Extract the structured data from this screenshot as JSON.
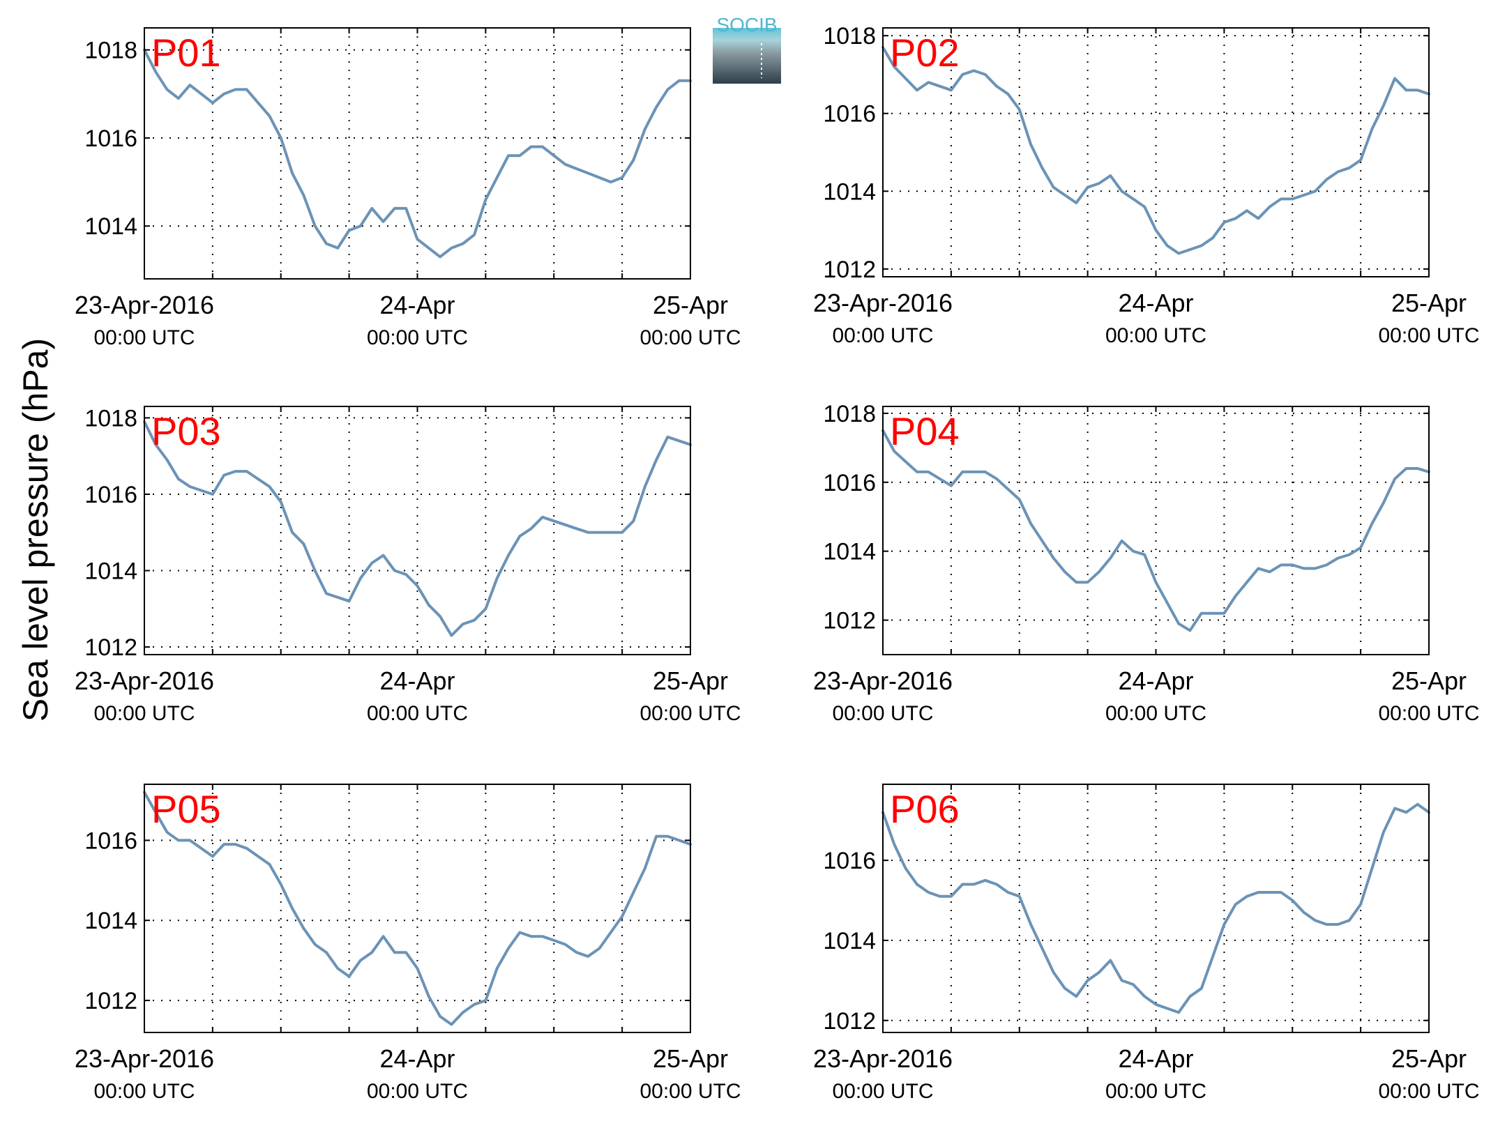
{
  "figure": {
    "ylabel": "Sea level pressure (hPa)",
    "logo_text": "SOCIB",
    "x_tick_labels": [
      {
        "date": "23-Apr-2016",
        "time": "00:00 UTC"
      },
      {
        "date": "24-Apr",
        "time": "00:00 UTC"
      },
      {
        "date": "25-Apr",
        "time": "00:00 UTC"
      }
    ],
    "colors": {
      "line": "#6b93b6",
      "panel_label": "#ff0000",
      "axis": "#000000",
      "grid": "#000000"
    }
  },
  "chart_data": [
    {
      "type": "line",
      "label": "P01",
      "grid": true,
      "xlim": [
        0,
        48
      ],
      "ylim": [
        1012.8,
        1018.5
      ],
      "yticks": [
        1014,
        1016,
        1018
      ],
      "x": [
        0,
        1,
        2,
        3,
        4,
        5,
        6,
        7,
        8,
        9,
        10,
        11,
        12,
        13,
        14,
        15,
        16,
        17,
        18,
        19,
        20,
        21,
        22,
        23,
        24,
        25,
        26,
        27,
        28,
        29,
        30,
        31,
        32,
        33,
        34,
        35,
        36,
        37,
        38,
        39,
        40,
        41,
        42,
        43,
        44,
        45,
        46,
        47,
        48
      ],
      "values": [
        1018.0,
        1017.5,
        1017.1,
        1016.9,
        1017.2,
        1017.0,
        1016.8,
        1017.0,
        1017.1,
        1017.1,
        1016.8,
        1016.5,
        1016.0,
        1015.2,
        1014.7,
        1014.0,
        1013.6,
        1013.5,
        1013.9,
        1014.0,
        1014.4,
        1014.1,
        1014.4,
        1014.4,
        1013.7,
        1013.5,
        1013.3,
        1013.5,
        1013.6,
        1013.8,
        1014.6,
        1015.1,
        1015.6,
        1015.6,
        1015.8,
        1015.8,
        1015.6,
        1015.4,
        1015.3,
        1015.2,
        1015.1,
        1015.0,
        1015.1,
        1015.5,
        1016.2,
        1016.7,
        1017.1,
        1017.3,
        1017.3
      ]
    },
    {
      "type": "line",
      "label": "P02",
      "grid": true,
      "xlim": [
        0,
        48
      ],
      "ylim": [
        1011.8,
        1018.2
      ],
      "yticks": [
        1012,
        1014,
        1016,
        1018
      ],
      "x": [
        0,
        1,
        2,
        3,
        4,
        5,
        6,
        7,
        8,
        9,
        10,
        11,
        12,
        13,
        14,
        15,
        16,
        17,
        18,
        19,
        20,
        21,
        22,
        23,
        24,
        25,
        26,
        27,
        28,
        29,
        30,
        31,
        32,
        33,
        34,
        35,
        36,
        37,
        38,
        39,
        40,
        41,
        42,
        43,
        44,
        45,
        46,
        47,
        48
      ],
      "values": [
        1017.7,
        1017.2,
        1016.9,
        1016.6,
        1016.8,
        1016.7,
        1016.6,
        1017.0,
        1017.1,
        1017.0,
        1016.7,
        1016.5,
        1016.1,
        1015.2,
        1014.6,
        1014.1,
        1013.9,
        1013.7,
        1014.1,
        1014.2,
        1014.4,
        1014.0,
        1013.8,
        1013.6,
        1013.0,
        1012.6,
        1012.4,
        1012.5,
        1012.6,
        1012.8,
        1013.2,
        1013.3,
        1013.5,
        1013.3,
        1013.6,
        1013.8,
        1013.8,
        1013.9,
        1014.0,
        1014.3,
        1014.5,
        1014.6,
        1014.8,
        1015.6,
        1016.2,
        1016.9,
        1016.6,
        1016.6,
        1016.5
      ]
    },
    {
      "type": "line",
      "label": "P03",
      "grid": true,
      "xlim": [
        0,
        48
      ],
      "ylim": [
        1011.8,
        1018.3
      ],
      "yticks": [
        1012,
        1014,
        1016,
        1018
      ],
      "x": [
        0,
        1,
        2,
        3,
        4,
        5,
        6,
        7,
        8,
        9,
        10,
        11,
        12,
        13,
        14,
        15,
        16,
        17,
        18,
        19,
        20,
        21,
        22,
        23,
        24,
        25,
        26,
        27,
        28,
        29,
        30,
        31,
        32,
        33,
        34,
        35,
        36,
        37,
        38,
        39,
        40,
        41,
        42,
        43,
        44,
        45,
        46,
        47,
        48
      ],
      "values": [
        1017.9,
        1017.3,
        1016.9,
        1016.4,
        1016.2,
        1016.1,
        1016.0,
        1016.5,
        1016.6,
        1016.6,
        1016.4,
        1016.2,
        1015.8,
        1015.0,
        1014.7,
        1014.0,
        1013.4,
        1013.3,
        1013.2,
        1013.8,
        1014.2,
        1014.4,
        1014.0,
        1013.9,
        1013.6,
        1013.1,
        1012.8,
        1012.3,
        1012.6,
        1012.7,
        1013.0,
        1013.8,
        1014.4,
        1014.9,
        1015.1,
        1015.4,
        1015.3,
        1015.2,
        1015.1,
        1015.0,
        1015.0,
        1015.0,
        1015.0,
        1015.3,
        1016.2,
        1016.9,
        1017.5,
        1017.4,
        1017.3
      ]
    },
    {
      "type": "line",
      "label": "P04",
      "grid": true,
      "xlim": [
        0,
        48
      ],
      "ylim": [
        1011.0,
        1018.2
      ],
      "yticks": [
        1012,
        1014,
        1016,
        1018
      ],
      "x": [
        0,
        1,
        2,
        3,
        4,
        5,
        6,
        7,
        8,
        9,
        10,
        11,
        12,
        13,
        14,
        15,
        16,
        17,
        18,
        19,
        20,
        21,
        22,
        23,
        24,
        25,
        26,
        27,
        28,
        29,
        30,
        31,
        32,
        33,
        34,
        35,
        36,
        37,
        38,
        39,
        40,
        41,
        42,
        43,
        44,
        45,
        46,
        47,
        48
      ],
      "values": [
        1017.5,
        1016.9,
        1016.6,
        1016.3,
        1016.3,
        1016.1,
        1015.9,
        1016.3,
        1016.3,
        1016.3,
        1016.1,
        1015.8,
        1015.5,
        1014.8,
        1014.3,
        1013.8,
        1013.4,
        1013.1,
        1013.1,
        1013.4,
        1013.8,
        1014.3,
        1014.0,
        1013.9,
        1013.1,
        1012.5,
        1011.9,
        1011.7,
        1012.2,
        1012.2,
        1012.2,
        1012.7,
        1013.1,
        1013.5,
        1013.4,
        1013.6,
        1013.6,
        1013.5,
        1013.5,
        1013.6,
        1013.8,
        1013.9,
        1014.1,
        1014.8,
        1015.4,
        1016.1,
        1016.4,
        1016.4,
        1016.3
      ]
    },
    {
      "type": "line",
      "label": "P05",
      "grid": true,
      "xlim": [
        0,
        48
      ],
      "ylim": [
        1011.2,
        1017.4
      ],
      "yticks": [
        1012,
        1014,
        1016
      ],
      "x": [
        0,
        1,
        2,
        3,
        4,
        5,
        6,
        7,
        8,
        9,
        10,
        11,
        12,
        13,
        14,
        15,
        16,
        17,
        18,
        19,
        20,
        21,
        22,
        23,
        24,
        25,
        26,
        27,
        28,
        29,
        30,
        31,
        32,
        33,
        34,
        35,
        36,
        37,
        38,
        39,
        40,
        41,
        42,
        43,
        44,
        45,
        46,
        47,
        48
      ],
      "values": [
        1017.2,
        1016.7,
        1016.2,
        1016.0,
        1016.0,
        1015.8,
        1015.6,
        1015.9,
        1015.9,
        1015.8,
        1015.6,
        1015.4,
        1014.9,
        1014.3,
        1013.8,
        1013.4,
        1013.2,
        1012.8,
        1012.6,
        1013.0,
        1013.2,
        1013.6,
        1013.2,
        1013.2,
        1012.8,
        1012.1,
        1011.6,
        1011.4,
        1011.7,
        1011.9,
        1012.0,
        1012.8,
        1013.3,
        1013.7,
        1013.6,
        1013.6,
        1013.5,
        1013.4,
        1013.2,
        1013.1,
        1013.3,
        1013.7,
        1014.1,
        1014.7,
        1015.3,
        1016.1,
        1016.1,
        1016.0,
        1015.9
      ]
    },
    {
      "type": "line",
      "label": "P06",
      "grid": true,
      "xlim": [
        0,
        48
      ],
      "ylim": [
        1011.7,
        1017.9
      ],
      "yticks": [
        1012,
        1014,
        1016
      ],
      "x": [
        0,
        1,
        2,
        3,
        4,
        5,
        6,
        7,
        8,
        9,
        10,
        11,
        12,
        13,
        14,
        15,
        16,
        17,
        18,
        19,
        20,
        21,
        22,
        23,
        24,
        25,
        26,
        27,
        28,
        29,
        30,
        31,
        32,
        33,
        34,
        35,
        36,
        37,
        38,
        39,
        40,
        41,
        42,
        43,
        44,
        45,
        46,
        47,
        48
      ],
      "values": [
        1017.2,
        1016.4,
        1015.8,
        1015.4,
        1015.2,
        1015.1,
        1015.1,
        1015.4,
        1015.4,
        1015.5,
        1015.4,
        1015.2,
        1015.1,
        1014.4,
        1013.8,
        1013.2,
        1012.8,
        1012.6,
        1013.0,
        1013.2,
        1013.5,
        1013.0,
        1012.9,
        1012.6,
        1012.4,
        1012.3,
        1012.2,
        1012.6,
        1012.8,
        1013.6,
        1014.4,
        1014.9,
        1015.1,
        1015.2,
        1015.2,
        1015.2,
        1015.0,
        1014.7,
        1014.5,
        1014.4,
        1014.4,
        1014.5,
        1014.9,
        1015.8,
        1016.7,
        1017.3,
        1017.2,
        1017.4,
        1017.2
      ]
    }
  ]
}
